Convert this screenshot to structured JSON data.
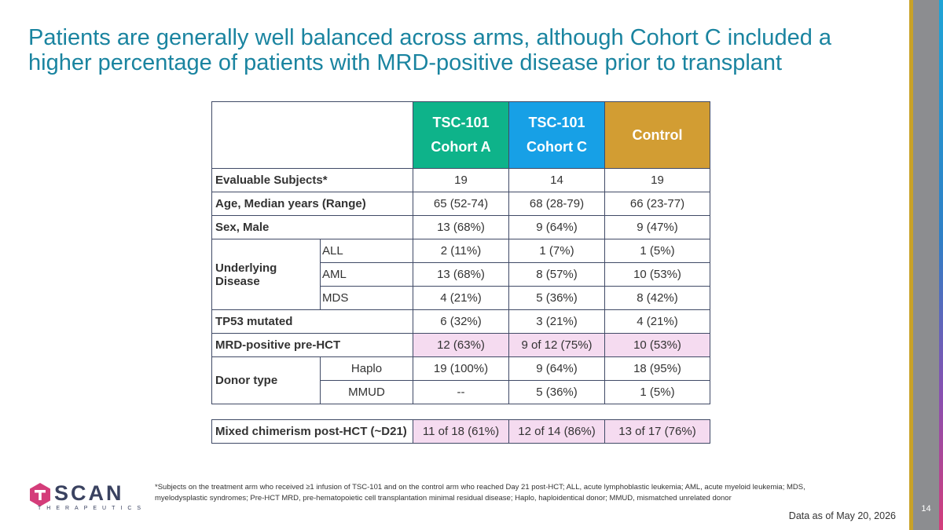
{
  "title": "Patients are generally well balanced across arms, although Cohort C included a higher percentage of patients with MRD-positive disease prior to transplant",
  "table": {
    "headers": [
      {
        "line1": "TSC-101",
        "line2": "Cohort A"
      },
      {
        "line1": "TSC-101",
        "line2": "Cohort C"
      },
      {
        "line1": "",
        "line2": "Control"
      }
    ],
    "rows": {
      "evaluable": {
        "label": "Evaluable Subjects*",
        "values": [
          "19",
          "14",
          "19"
        ]
      },
      "age": {
        "label": "Age, Median years (Range)",
        "values": [
          "65 (52-74)",
          "68 (28-79)",
          "66 (23-77)"
        ]
      },
      "sex": {
        "label": "Sex, Male",
        "values": [
          "13 (68%)",
          "9 (64%)",
          "9 (47%)"
        ]
      },
      "disease": {
        "label": "Underlying Disease",
        "subrows": [
          {
            "label": "ALL",
            "values": [
              "2 (11%)",
              "1 (7%)",
              "1 (5%)"
            ]
          },
          {
            "label": "AML",
            "values": [
              "13 (68%)",
              "8 (57%)",
              "10 (53%)"
            ]
          },
          {
            "label": "MDS",
            "values": [
              "4 (21%)",
              "5 (36%)",
              "8 (42%)"
            ]
          }
        ]
      },
      "tp53": {
        "label": "TP53 mutated",
        "values": [
          "6 (32%)",
          "3 (21%)",
          "4 (21%)"
        ]
      },
      "mrd": {
        "label": "MRD-positive pre-HCT",
        "values": [
          "12 (63%)",
          "9 of 12 (75%)",
          "10 (53%)"
        ]
      },
      "donor": {
        "label": "Donor type",
        "subrows": [
          {
            "label": "Haplo",
            "values": [
              "19 (100%)",
              "9 (64%)",
              "18 (95%)"
            ]
          },
          {
            "label": "MMUD",
            "values": [
              "--",
              "5 (36%)",
              "1 (5%)"
            ]
          }
        ]
      }
    }
  },
  "chimerism": {
    "label": "Mixed chimerism post-HCT (~D21)",
    "values": [
      "11 of 18 (61%)",
      "12 of 14 (86%)",
      "13 of 17 (76%)"
    ]
  },
  "footnote": "*Subjects on the treatment arm who received ≥1 infusion of TSC-101 and on the control arm who reached Day 21 post-HCT; ALL, acute lymphoblastic leukemia; AML, acute myeloid leukemia; MDS, myelodysplastic syndromes; Pre-HCT MRD,  pre-hematopoietic cell transplantation minimal residual disease; Haplo, haploidentical donor; MMUD, mismatched unrelated donor",
  "date_note": "Data as of May 20, 2026",
  "page_number": "14",
  "logo": {
    "name": "TSCAN",
    "tagline": "THERAPEUTICS"
  },
  "colors": {
    "title": "#1a84a0",
    "cohort_a": "#0eb38a",
    "cohort_c": "#17a0e6",
    "control": "#d29d33",
    "highlight": "#f5dbf0",
    "logo_hex": "#d43d7a"
  }
}
